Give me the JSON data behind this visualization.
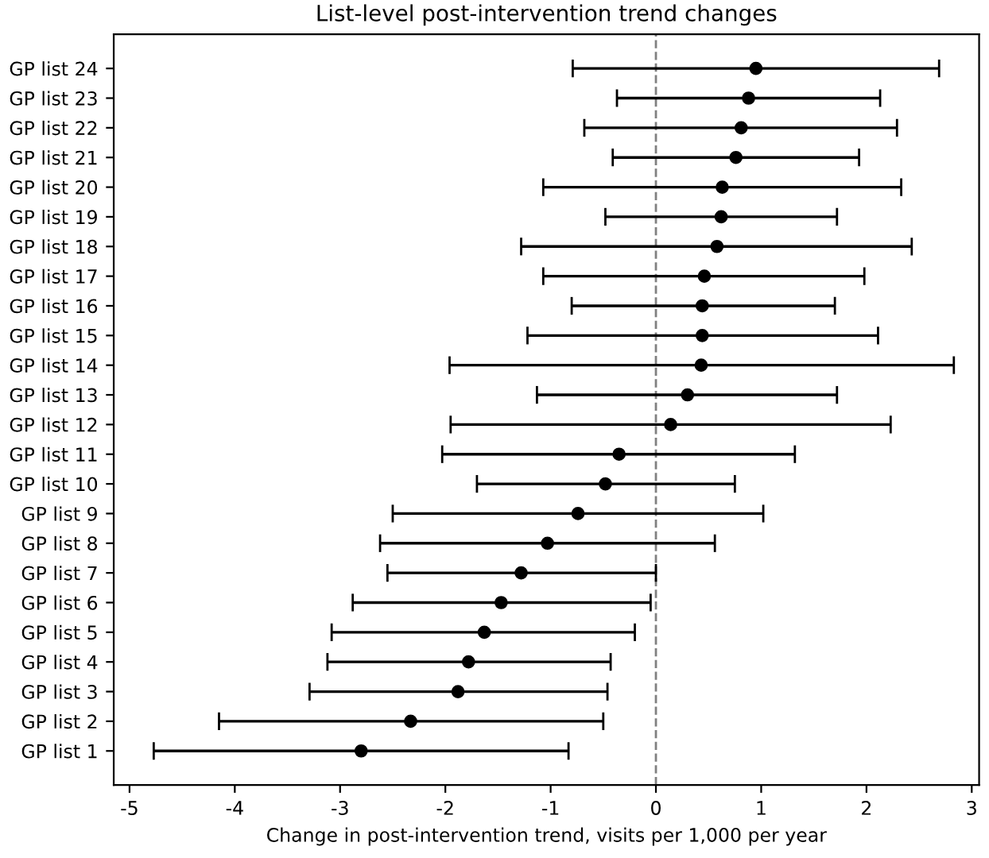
{
  "chart_data": {
    "type": "scatter",
    "orientation": "horizontal",
    "title": "List-level post-intervention trend changes",
    "xlabel": "Change in post-intervention trend, visits per 1,000 per year",
    "categories": [
      "GP list 24",
      "GP list 23",
      "GP list 22",
      "GP list 21",
      "GP list 20",
      "GP list 19",
      "GP list 18",
      "GP list 17",
      "GP list 16",
      "GP list 15",
      "GP list 14",
      "GP list 13",
      "GP list 12",
      "GP list 11",
      "GP list 10",
      "GP list 9",
      "GP list 8",
      "GP list 7",
      "GP list 6",
      "GP list 5",
      "GP list 4",
      "GP list 3",
      "GP list 2",
      "GP list 1"
    ],
    "series": [
      {
        "color": "#000000",
        "values": [
          0.95,
          0.88,
          0.81,
          0.76,
          0.63,
          0.62,
          0.58,
          0.46,
          0.44,
          0.44,
          0.43,
          0.3,
          0.14,
          -0.35,
          -0.48,
          -0.74,
          -1.03,
          -1.28,
          -1.47,
          -1.63,
          -1.78,
          -1.88,
          -2.33,
          -2.8
        ],
        "errors": [
          [
            -0.79,
            2.69
          ],
          [
            -0.37,
            2.13
          ],
          [
            -0.68,
            2.29
          ],
          [
            -0.41,
            1.93
          ],
          [
            -1.07,
            2.33
          ],
          [
            -0.48,
            1.72
          ],
          [
            -1.28,
            2.43
          ],
          [
            -1.07,
            1.98
          ],
          [
            -0.8,
            1.7
          ],
          [
            -1.22,
            2.11
          ],
          [
            -1.96,
            2.83
          ],
          [
            -1.13,
            1.72
          ],
          [
            -1.95,
            2.23
          ],
          [
            -2.03,
            1.32
          ],
          [
            -1.7,
            0.75
          ],
          [
            -2.5,
            1.02
          ],
          [
            -2.62,
            0.56
          ],
          [
            -2.55,
            0.0
          ],
          [
            -2.88,
            -0.05
          ],
          [
            -3.08,
            -0.2
          ],
          [
            -3.12,
            -0.43
          ],
          [
            -3.29,
            -0.46
          ],
          [
            -4.15,
            -0.5
          ],
          [
            -4.77,
            -0.83
          ]
        ]
      }
    ],
    "xlim": [
      -5.15,
      3.07
    ],
    "xticks": [
      -5,
      -4,
      -3,
      -2,
      -1,
      0,
      1,
      2,
      3
    ],
    "ref_lines": [
      {
        "axis": "x",
        "value": 0,
        "color": "#808080",
        "line_style": "dashed"
      }
    ],
    "marker": "circle",
    "grid": false
  }
}
